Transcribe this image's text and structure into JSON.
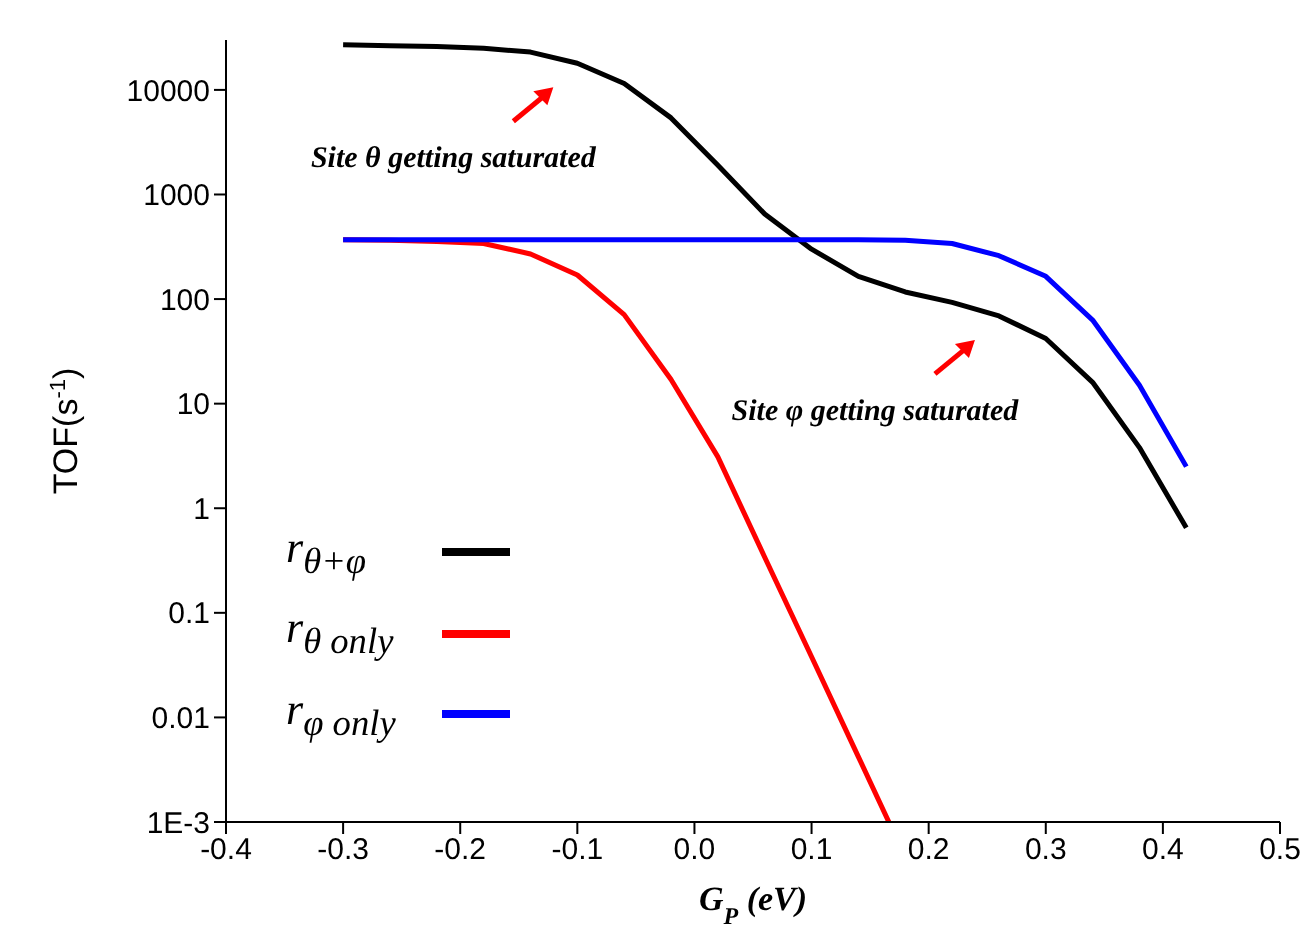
{
  "chart_data": {
    "type": "line",
    "xlabel": "G$_{P}$ (eV)",
    "ylabel": "TOF(s$^{-1}$)",
    "x": [
      -0.3,
      -0.26,
      -0.22,
      -0.18,
      -0.14,
      -0.1,
      -0.06,
      -0.02,
      0.02,
      0.06,
      0.1,
      0.14,
      0.18,
      0.22,
      0.26,
      0.3,
      0.34,
      0.38,
      0.42
    ],
    "series": [
      {
        "name": "r$_{θ+φ}$",
        "color": "#000000",
        "values": [
          27000,
          26500,
          26000,
          25000,
          23000,
          18000,
          11500,
          5400,
          1900,
          650,
          300,
          165,
          117,
          93,
          69,
          42,
          16,
          3.8,
          0.65
        ]
      },
      {
        "name": "r$_{θ only}$",
        "color": "#ff0000",
        "x": [
          -0.3,
          -0.26,
          -0.22,
          -0.18,
          -0.14,
          -0.1,
          -0.06,
          -0.02,
          0.02,
          0.06,
          0.1,
          0.14,
          0.166
        ],
        "values": [
          370,
          365,
          355,
          340,
          270,
          170,
          71,
          17,
          3.1,
          0.34,
          0.038,
          0.0042,
          0.001
        ]
      },
      {
        "name": "r$_{φ only}$",
        "color": "#0000ff",
        "values": [
          370,
          370,
          370,
          370,
          370,
          370,
          370,
          370,
          370,
          370,
          370,
          370,
          365,
          340,
          260,
          165,
          63,
          15,
          2.5
        ]
      }
    ],
    "log": "y",
    "xlim": [
      -0.4,
      0.5
    ],
    "xticks": [
      -0.4,
      -0.3,
      -0.2,
      -0.1,
      {
        "value": 0,
        "label": "0.0"
      },
      0.1,
      0.2,
      0.3,
      0.4,
      0.5
    ],
    "ylim": [
      0.001,
      30000
    ],
    "yticks": [
      {
        "value": 0.001,
        "label": "1E-3"
      },
      0.01,
      0.1,
      1,
      10,
      100,
      1000,
      10000
    ],
    "legend": "bottom left",
    "grid": false,
    "marker": "none",
    "line_style": "solid",
    "annotations": [
      {
        "text": "Site θ getting saturated",
        "x": -0.1,
        "y": 18000
      },
      {
        "text": "Site φ getting saturated",
        "x": 0.26,
        "y": 69
      }
    ]
  }
}
